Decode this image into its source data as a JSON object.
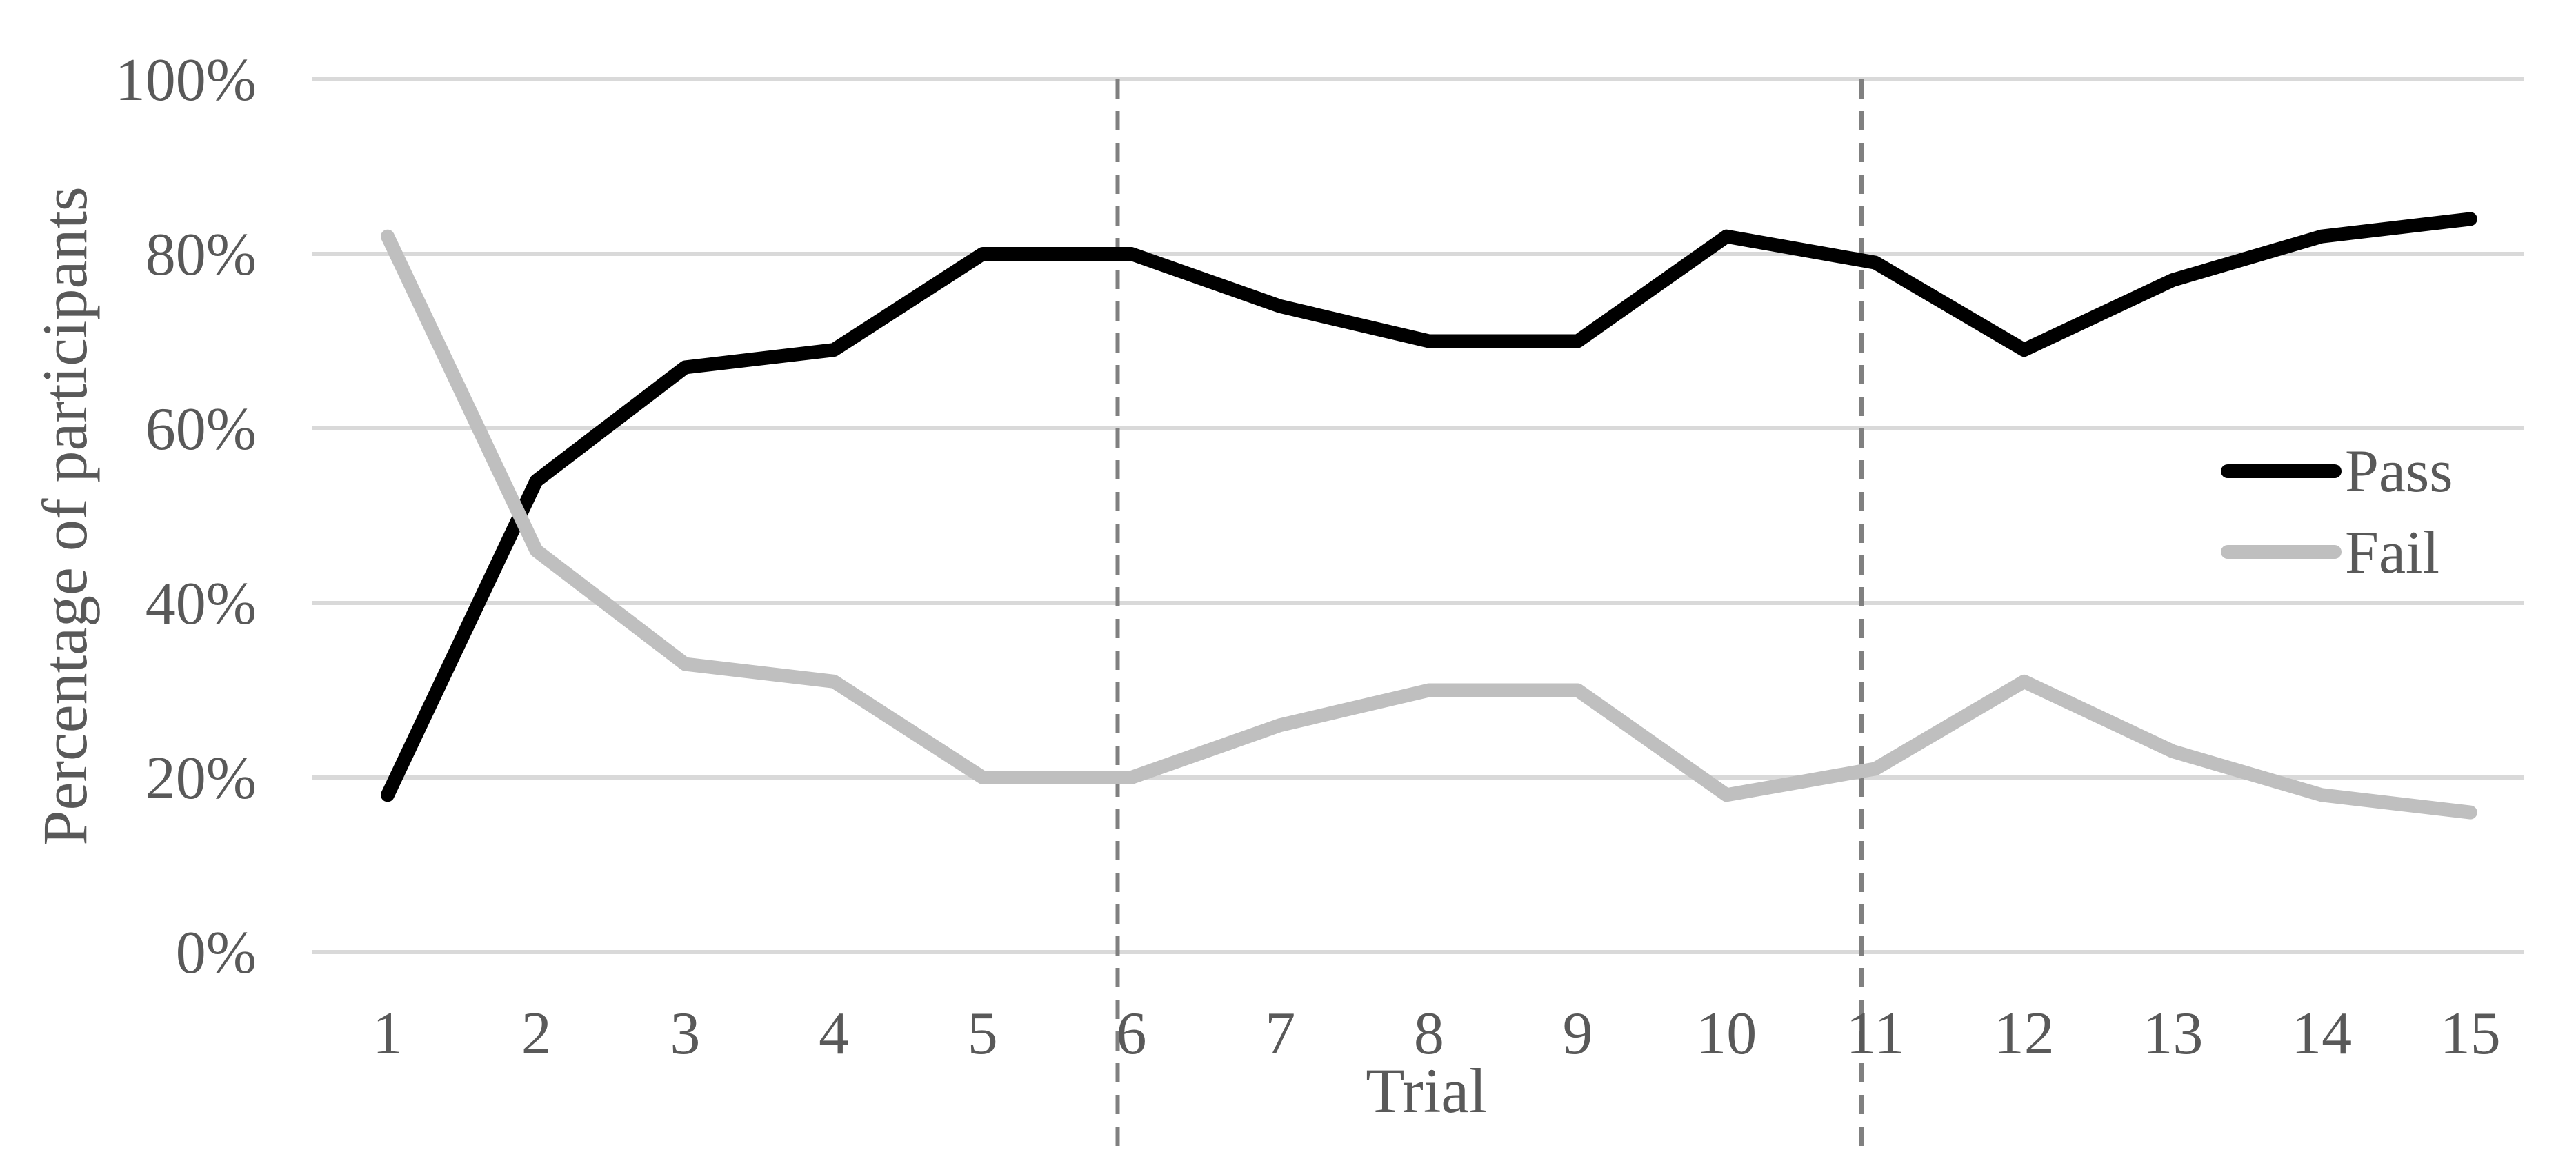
{
  "chart_data": {
    "type": "line",
    "title": "",
    "xlabel": "Trial",
    "ylabel": "Percentage of participants",
    "categories": [
      "1",
      "2",
      "3",
      "4",
      "5",
      "6",
      "7",
      "8",
      "9",
      "10",
      "11",
      "12",
      "13",
      "14",
      "15"
    ],
    "ylim": [
      0,
      100
    ],
    "yticks": [
      "0%",
      "20%",
      "40%",
      "60%",
      "80%",
      "100%"
    ],
    "grid": true,
    "legend_position": "right",
    "series": [
      {
        "name": "Pass",
        "color": "#000000",
        "values": [
          18,
          54,
          67,
          69,
          80,
          80,
          74,
          70,
          70,
          82,
          79,
          69,
          77,
          82,
          84
        ]
      },
      {
        "name": "Fail",
        "color": "#bfbfbf",
        "values": [
          82,
          46,
          33,
          31,
          20,
          20,
          26,
          30,
          30,
          18,
          21,
          31,
          23,
          18,
          16
        ]
      }
    ],
    "phase_dividers": [
      "6",
      "11"
    ]
  }
}
